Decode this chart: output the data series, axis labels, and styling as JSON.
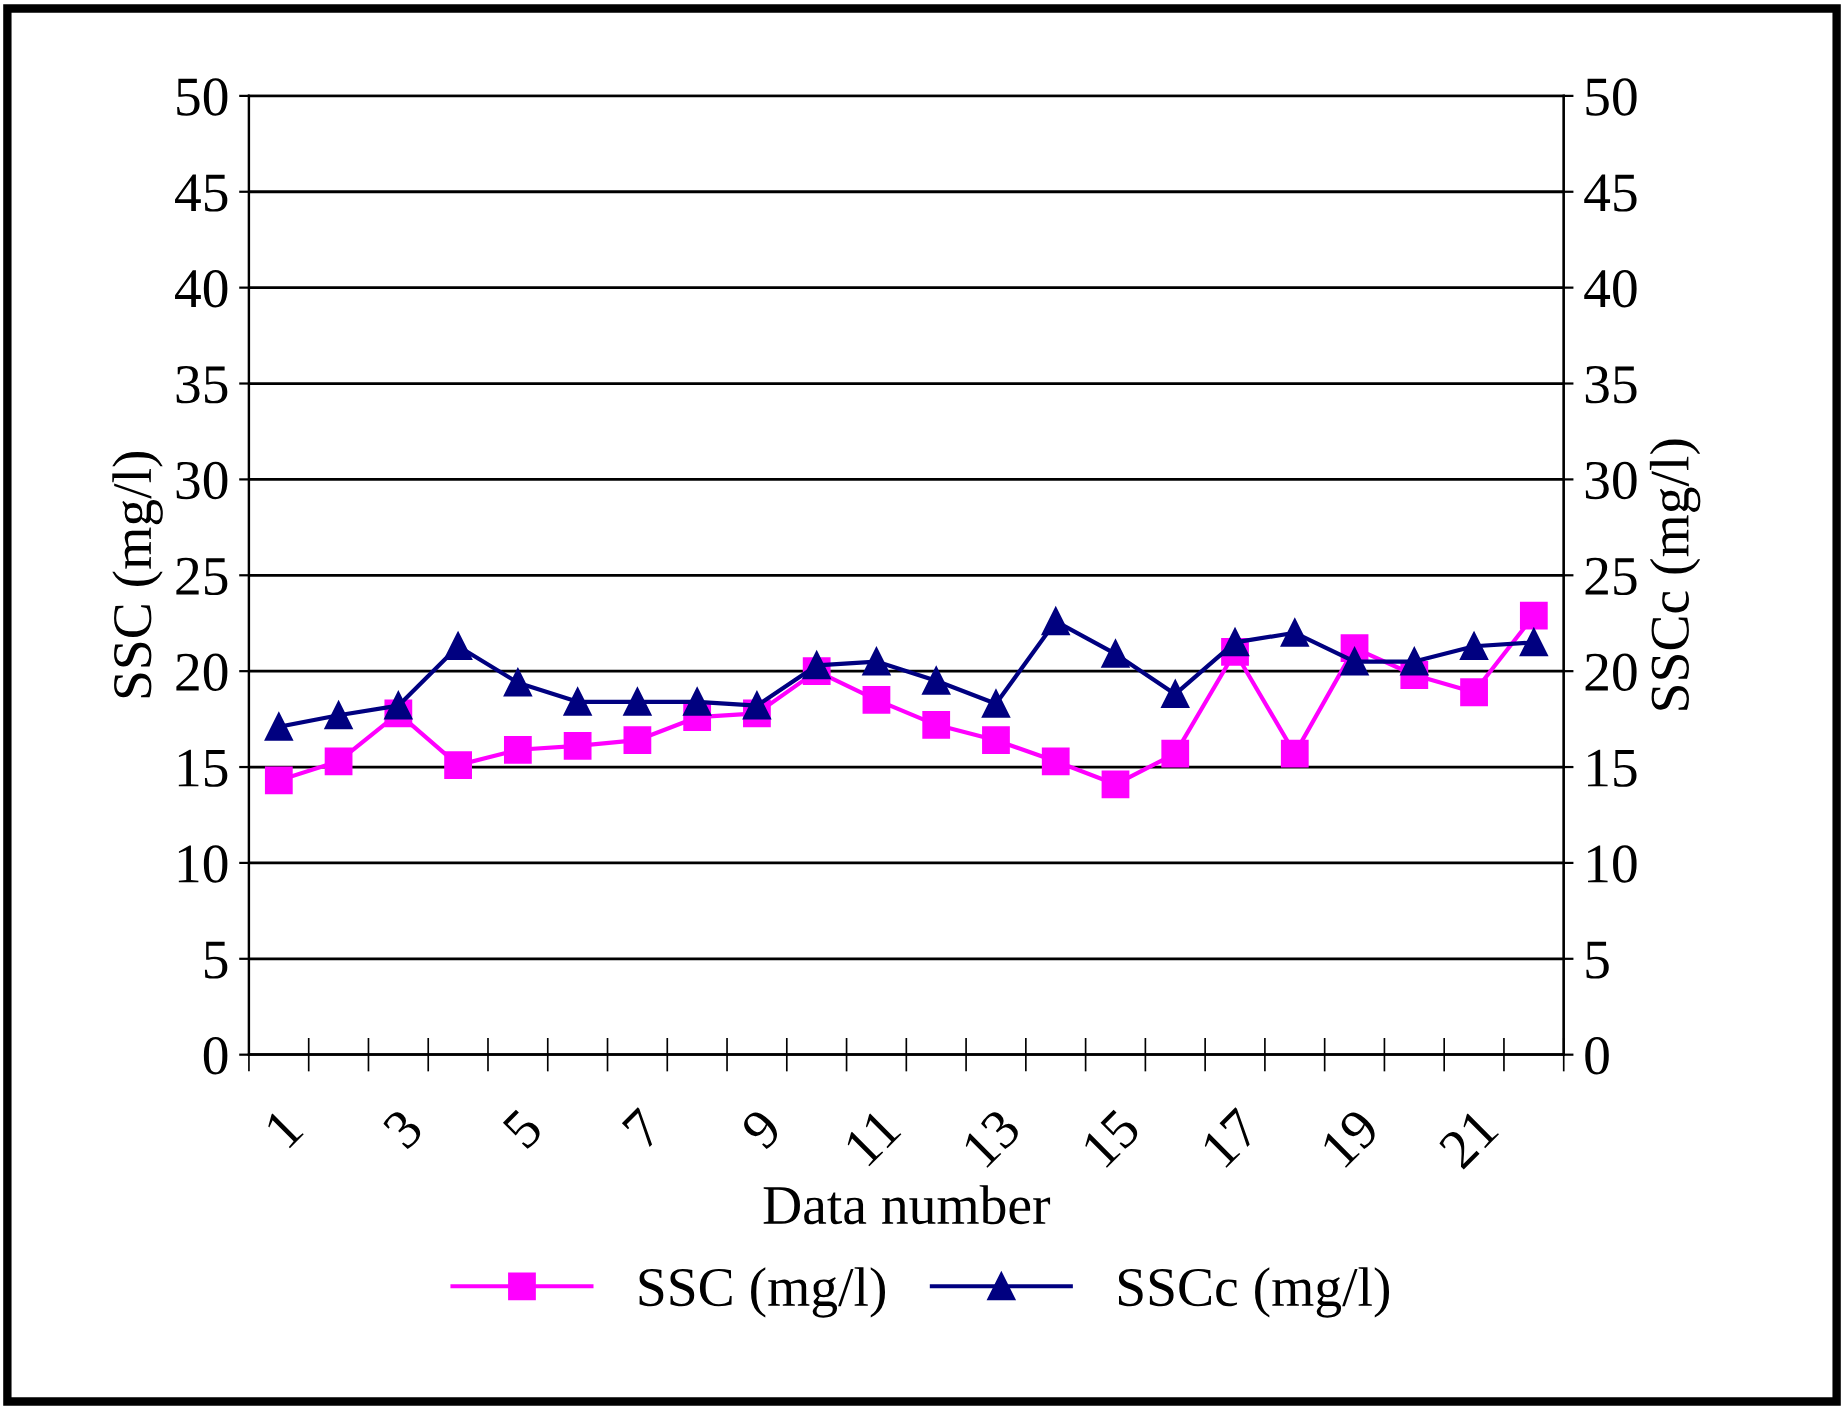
{
  "chart_data": {
    "type": "line",
    "xlabel": "Data number",
    "ylabel": "SSC (mg/l)",
    "y2label": "SSCc (mg/l)",
    "categories": [
      "1",
      null,
      "3",
      null,
      "5",
      null,
      "7",
      null,
      "9",
      null,
      "11",
      null,
      "13",
      null,
      "15",
      null,
      "17",
      null,
      "19",
      null,
      "21",
      null
    ],
    "series": [
      {
        "name": "SSC (mg/l)",
        "color": "#ff00ff",
        "marker": "square",
        "values": [
          14.3,
          15.3,
          17.8,
          15.1,
          15.9,
          16.1,
          16.4,
          17.6,
          17.8,
          20.0,
          18.5,
          17.2,
          16.4,
          15.3,
          14.1,
          15.7,
          21.0,
          15.7,
          21.2,
          19.8,
          18.9,
          22.9
        ]
      },
      {
        "name": "SSCc (mg/l)",
        "color": "#000080",
        "marker": "triangle",
        "axis": "y2",
        "values": [
          17.1,
          17.7,
          18.2,
          21.3,
          19.4,
          18.4,
          18.4,
          18.4,
          18.2,
          20.3,
          20.5,
          19.5,
          18.3,
          22.6,
          20.9,
          18.8,
          21.5,
          22.0,
          20.5,
          20.5,
          21.3,
          21.5
        ]
      }
    ],
    "ylim": [
      0,
      50
    ],
    "yticks": [
      0,
      5,
      10,
      15,
      20,
      25,
      30,
      35,
      40,
      45,
      50
    ],
    "y2lim": [
      0,
      50
    ],
    "y2ticks": [
      0,
      5,
      10,
      15,
      20,
      25,
      30,
      35,
      40,
      45,
      50
    ],
    "grid": "y",
    "legend": "bottom"
  }
}
